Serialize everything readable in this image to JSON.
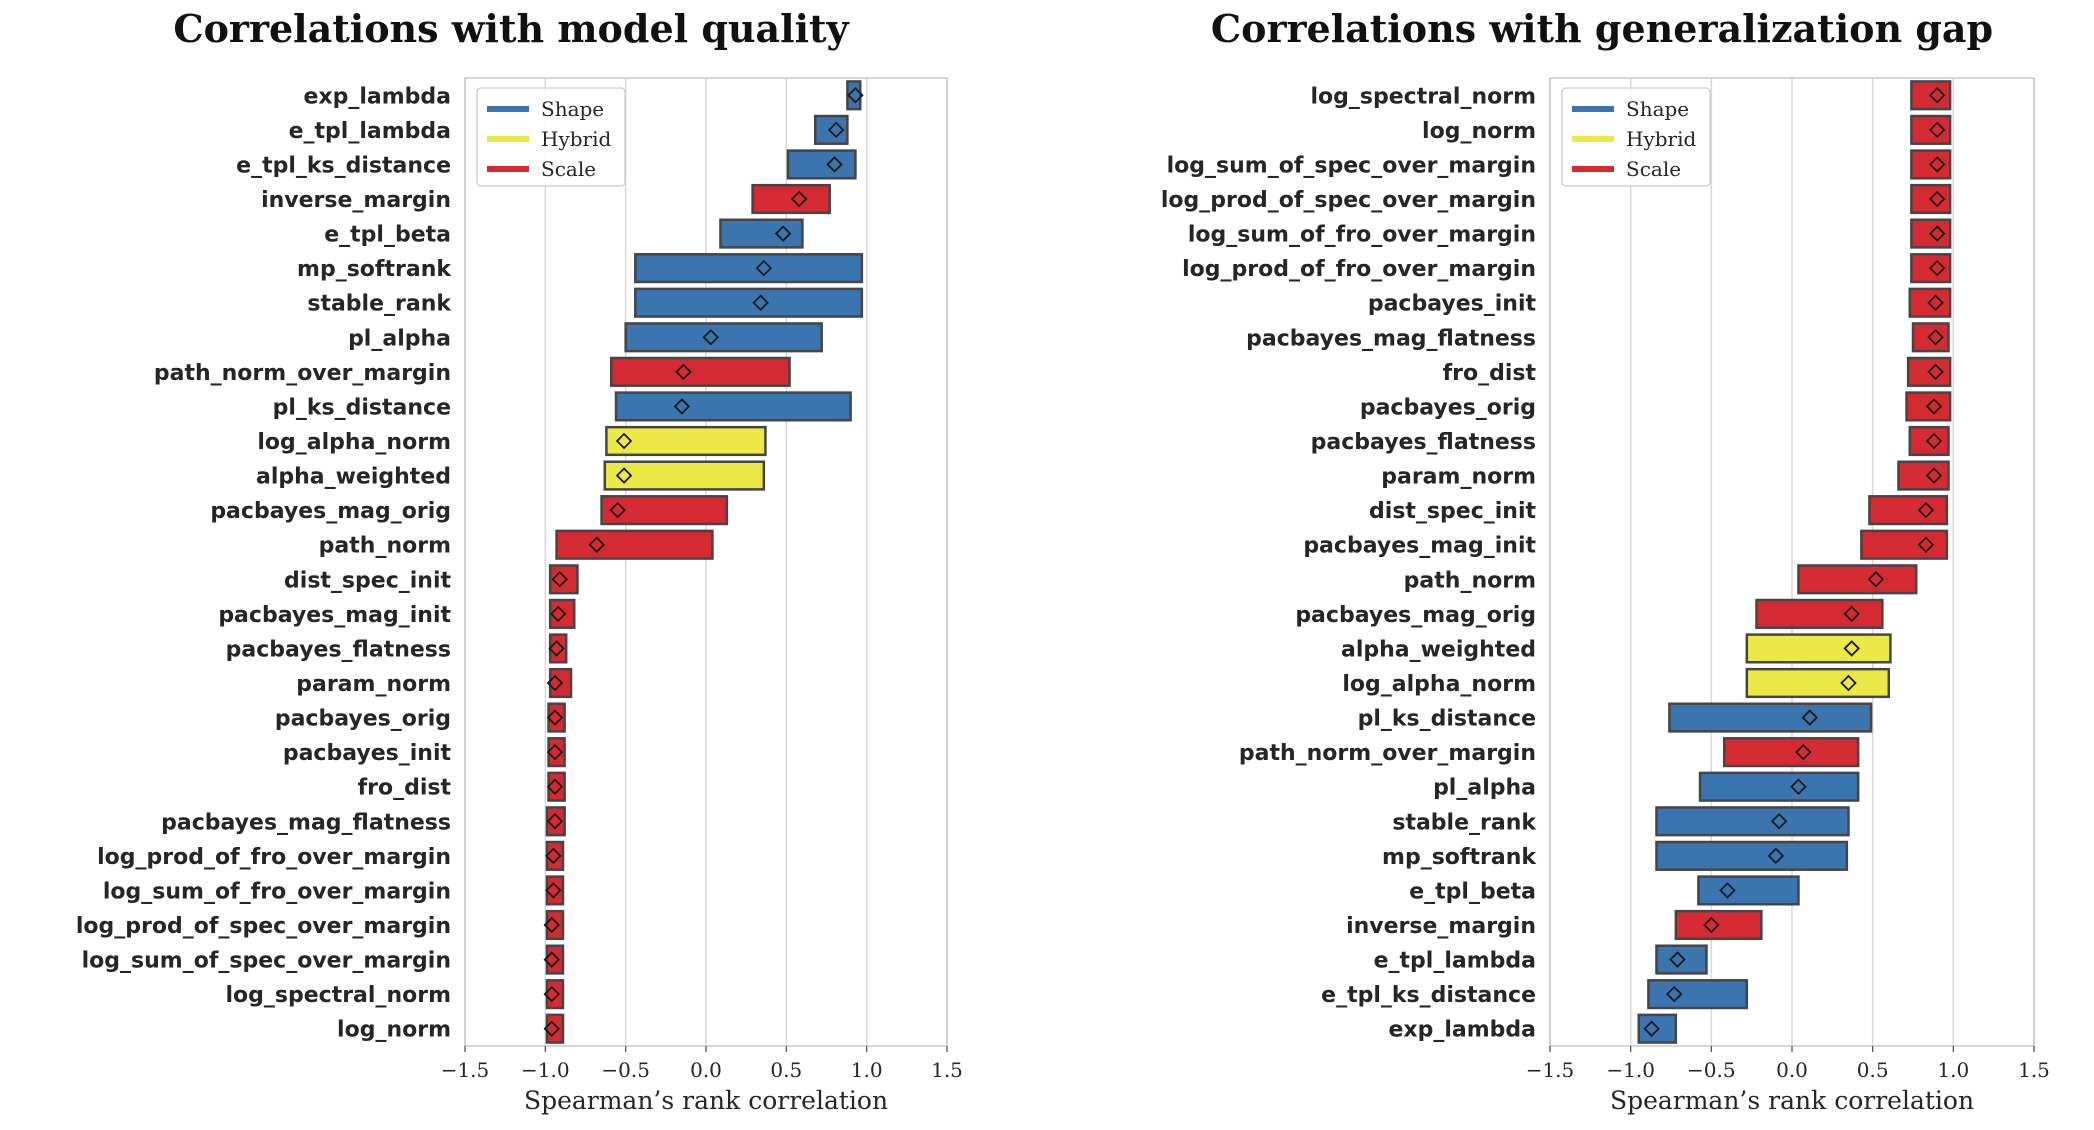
{
  "legend": [
    {
      "name": "Shape",
      "color": "#3b75af"
    },
    {
      "name": "Hybrid",
      "color": "#ece946"
    },
    {
      "name": "Scale",
      "color": "#d62a33"
    }
  ],
  "chart_data": [
    {
      "type": "bar",
      "orientation": "horizontal-range",
      "title": "Correlations with model quality",
      "xlabel": "Spearman’s rank correlation",
      "xlim": [
        -1.5,
        1.5
      ],
      "xticks": [
        "−1.5",
        "−1.0",
        "−0.5",
        "0.0",
        "0.5",
        "1.0",
        "1.5"
      ],
      "grid": "vertical",
      "legend_position": "top-left",
      "rows": [
        {
          "label": "exp_lambda",
          "group": "Shape",
          "min": 0.88,
          "max": 0.96,
          "median": 0.93
        },
        {
          "label": "e_tpl_lambda",
          "group": "Shape",
          "min": 0.68,
          "max": 0.88,
          "median": 0.81
        },
        {
          "label": "e_tpl_ks_distance",
          "group": "Shape",
          "min": 0.51,
          "max": 0.93,
          "median": 0.8
        },
        {
          "label": "inverse_margin",
          "group": "Scale",
          "min": 0.29,
          "max": 0.77,
          "median": 0.58
        },
        {
          "label": "e_tpl_beta",
          "group": "Shape",
          "min": 0.09,
          "max": 0.6,
          "median": 0.48
        },
        {
          "label": "mp_softrank",
          "group": "Shape",
          "min": -0.44,
          "max": 0.97,
          "median": 0.36
        },
        {
          "label": "stable_rank",
          "group": "Shape",
          "min": -0.44,
          "max": 0.97,
          "median": 0.34
        },
        {
          "label": "pl_alpha",
          "group": "Shape",
          "min": -0.5,
          "max": 0.72,
          "median": 0.03
        },
        {
          "label": "path_norm_over_margin",
          "group": "Scale",
          "min": -0.59,
          "max": 0.52,
          "median": -0.14
        },
        {
          "label": "pl_ks_distance",
          "group": "Shape",
          "min": -0.56,
          "max": 0.9,
          "median": -0.15
        },
        {
          "label": "log_alpha_norm",
          "group": "Hybrid",
          "min": -0.62,
          "max": 0.37,
          "median": -0.51
        },
        {
          "label": "alpha_weighted",
          "group": "Hybrid",
          "min": -0.63,
          "max": 0.36,
          "median": -0.51
        },
        {
          "label": "pacbayes_mag_orig",
          "group": "Scale",
          "min": -0.65,
          "max": 0.13,
          "median": -0.55
        },
        {
          "label": "path_norm",
          "group": "Scale",
          "min": -0.93,
          "max": 0.04,
          "median": -0.68
        },
        {
          "label": "dist_spec_init",
          "group": "Scale",
          "min": -0.97,
          "max": -0.8,
          "median": -0.91
        },
        {
          "label": "pacbayes_mag_init",
          "group": "Scale",
          "min": -0.97,
          "max": -0.82,
          "median": -0.92
        },
        {
          "label": "pacbayes_flatness",
          "group": "Scale",
          "min": -0.97,
          "max": -0.87,
          "median": -0.93
        },
        {
          "label": "param_norm",
          "group": "Scale",
          "min": -0.97,
          "max": -0.84,
          "median": -0.94
        },
        {
          "label": "pacbayes_orig",
          "group": "Scale",
          "min": -0.98,
          "max": -0.88,
          "median": -0.94
        },
        {
          "label": "pacbayes_init",
          "group": "Scale",
          "min": -0.98,
          "max": -0.88,
          "median": -0.94
        },
        {
          "label": "fro_dist",
          "group": "Scale",
          "min": -0.98,
          "max": -0.88,
          "median": -0.94
        },
        {
          "label": "pacbayes_mag_flatness",
          "group": "Scale",
          "min": -0.99,
          "max": -0.88,
          "median": -0.94
        },
        {
          "label": "log_prod_of_fro_over_margin",
          "group": "Scale",
          "min": -0.99,
          "max": -0.89,
          "median": -0.95
        },
        {
          "label": "log_sum_of_fro_over_margin",
          "group": "Scale",
          "min": -0.99,
          "max": -0.89,
          "median": -0.95
        },
        {
          "label": "log_prod_of_spec_over_margin",
          "group": "Scale",
          "min": -0.99,
          "max": -0.89,
          "median": -0.96
        },
        {
          "label": "log_sum_of_spec_over_margin",
          "group": "Scale",
          "min": -0.99,
          "max": -0.89,
          "median": -0.96
        },
        {
          "label": "log_spectral_norm",
          "group": "Scale",
          "min": -0.99,
          "max": -0.89,
          "median": -0.96
        },
        {
          "label": "log_norm",
          "group": "Scale",
          "min": -0.99,
          "max": -0.89,
          "median": -0.96
        }
      ]
    },
    {
      "type": "bar",
      "orientation": "horizontal-range",
      "title": "Correlations with generalization gap",
      "xlabel": "Spearman’s rank correlation",
      "xlim": [
        -1.5,
        1.5
      ],
      "xticks": [
        "−1.5",
        "−1.0",
        "−0.5",
        "0.0",
        "0.5",
        "1.0",
        "1.5"
      ],
      "grid": "vertical",
      "legend_position": "top-left",
      "rows": [
        {
          "label": "log_spectral_norm",
          "group": "Scale",
          "min": 0.74,
          "max": 0.98,
          "median": 0.9
        },
        {
          "label": "log_norm",
          "group": "Scale",
          "min": 0.74,
          "max": 0.98,
          "median": 0.9
        },
        {
          "label": "log_sum_of_spec_over_margin",
          "group": "Scale",
          "min": 0.74,
          "max": 0.98,
          "median": 0.9
        },
        {
          "label": "log_prod_of_spec_over_margin",
          "group": "Scale",
          "min": 0.74,
          "max": 0.98,
          "median": 0.9
        },
        {
          "label": "log_sum_of_fro_over_margin",
          "group": "Scale",
          "min": 0.74,
          "max": 0.98,
          "median": 0.9
        },
        {
          "label": "log_prod_of_fro_over_margin",
          "group": "Scale",
          "min": 0.74,
          "max": 0.98,
          "median": 0.9
        },
        {
          "label": "pacbayes_init",
          "group": "Scale",
          "min": 0.73,
          "max": 0.98,
          "median": 0.89
        },
        {
          "label": "pacbayes_mag_flatness",
          "group": "Scale",
          "min": 0.75,
          "max": 0.97,
          "median": 0.89
        },
        {
          "label": "fro_dist",
          "group": "Scale",
          "min": 0.72,
          "max": 0.98,
          "median": 0.89
        },
        {
          "label": "pacbayes_orig",
          "group": "Scale",
          "min": 0.71,
          "max": 0.98,
          "median": 0.88
        },
        {
          "label": "pacbayes_flatness",
          "group": "Scale",
          "min": 0.73,
          "max": 0.97,
          "median": 0.88
        },
        {
          "label": "param_norm",
          "group": "Scale",
          "min": 0.66,
          "max": 0.97,
          "median": 0.88
        },
        {
          "label": "dist_spec_init",
          "group": "Scale",
          "min": 0.48,
          "max": 0.96,
          "median": 0.83
        },
        {
          "label": "pacbayes_mag_init",
          "group": "Scale",
          "min": 0.43,
          "max": 0.96,
          "median": 0.83
        },
        {
          "label": "path_norm",
          "group": "Scale",
          "min": 0.04,
          "max": 0.77,
          "median": 0.52
        },
        {
          "label": "pacbayes_mag_orig",
          "group": "Scale",
          "min": -0.22,
          "max": 0.56,
          "median": 0.37
        },
        {
          "label": "alpha_weighted",
          "group": "Hybrid",
          "min": -0.28,
          "max": 0.61,
          "median": 0.37
        },
        {
          "label": "log_alpha_norm",
          "group": "Hybrid",
          "min": -0.28,
          "max": 0.6,
          "median": 0.35
        },
        {
          "label": "pl_ks_distance",
          "group": "Shape",
          "min": -0.76,
          "max": 0.49,
          "median": 0.11
        },
        {
          "label": "path_norm_over_margin",
          "group": "Scale",
          "min": -0.42,
          "max": 0.41,
          "median": 0.07
        },
        {
          "label": "pl_alpha",
          "group": "Shape",
          "min": -0.57,
          "max": 0.41,
          "median": 0.04
        },
        {
          "label": "stable_rank",
          "group": "Shape",
          "min": -0.84,
          "max": 0.35,
          "median": -0.08
        },
        {
          "label": "mp_softrank",
          "group": "Shape",
          "min": -0.84,
          "max": 0.34,
          "median": -0.1
        },
        {
          "label": "e_tpl_beta",
          "group": "Shape",
          "min": -0.58,
          "max": 0.04,
          "median": -0.4
        },
        {
          "label": "inverse_margin",
          "group": "Scale",
          "min": -0.72,
          "max": -0.19,
          "median": -0.5
        },
        {
          "label": "e_tpl_lambda",
          "group": "Shape",
          "min": -0.84,
          "max": -0.53,
          "median": -0.71
        },
        {
          "label": "e_tpl_ks_distance",
          "group": "Shape",
          "min": -0.89,
          "max": -0.28,
          "median": -0.73
        },
        {
          "label": "exp_lambda",
          "group": "Shape",
          "min": -0.95,
          "max": -0.72,
          "median": -0.87
        }
      ]
    }
  ]
}
